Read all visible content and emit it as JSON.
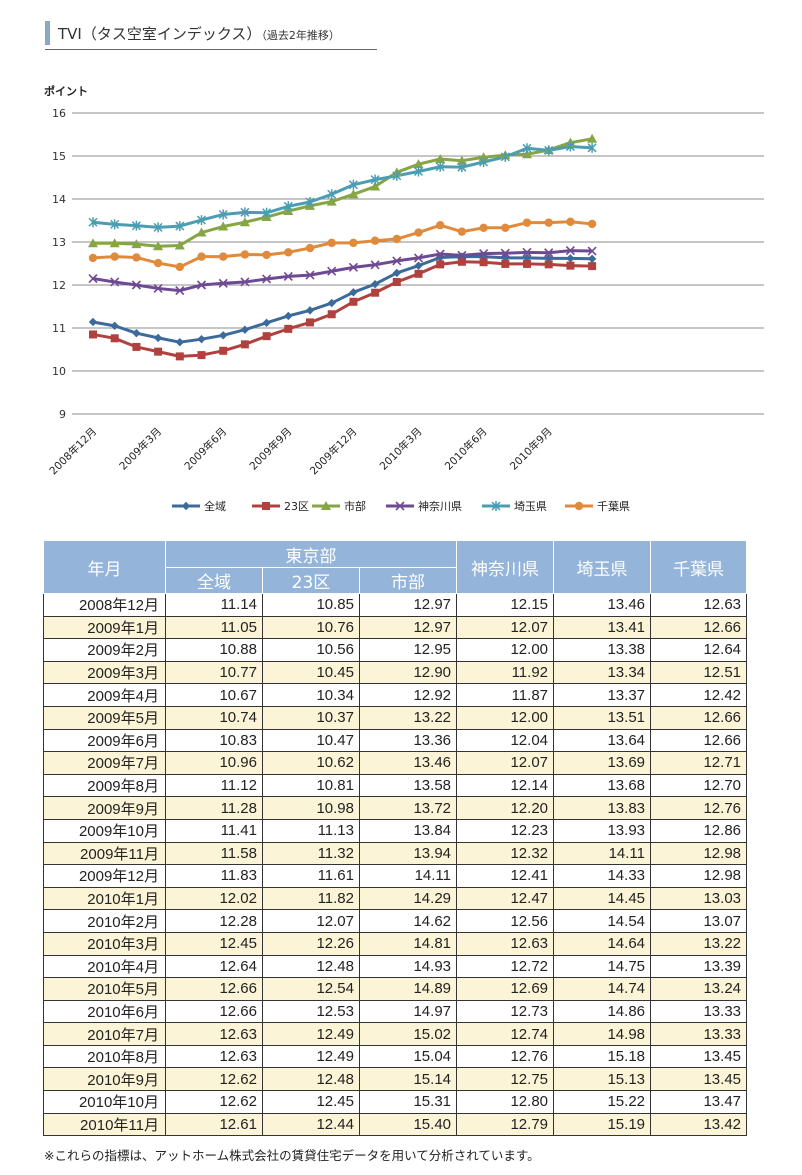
{
  "header": {
    "title": "TVI（タス空室インデックス）",
    "subtitle": "（過去2年推移）"
  },
  "chart_data": {
    "type": "line",
    "ylabel": "ポイント",
    "ylim": [
      9,
      16
    ],
    "yticks": [
      9,
      10,
      11,
      12,
      13,
      14,
      15,
      16
    ],
    "grid": true,
    "legend_position": "bottom",
    "xtick_labels": [
      "2008年12月",
      "2009年3月",
      "2009年6月",
      "2009年9月",
      "2009年12月",
      "2010年3月",
      "2010年6月",
      "2010年9月"
    ],
    "xtick_indices": [
      0,
      3,
      6,
      9,
      12,
      15,
      18,
      21
    ],
    "x": [
      "2008年12月",
      "2009年1月",
      "2009年2月",
      "2009年3月",
      "2009年4月",
      "2009年5月",
      "2009年6月",
      "2009年7月",
      "2009年8月",
      "2009年9月",
      "2009年10月",
      "2009年11月",
      "2009年12月",
      "2010年1月",
      "2010年2月",
      "2010年3月",
      "2010年4月",
      "2010年5月",
      "2010年6月",
      "2010年7月",
      "2010年8月",
      "2010年9月",
      "2010年10月",
      "2010年11月"
    ],
    "series": [
      {
        "name": "全域",
        "color": "#3c6a9a",
        "marker": "diamond",
        "values": [
          11.14,
          11.05,
          10.88,
          10.77,
          10.67,
          10.74,
          10.83,
          10.96,
          11.12,
          11.28,
          11.41,
          11.58,
          11.83,
          12.02,
          12.28,
          12.45,
          12.64,
          12.66,
          12.66,
          12.63,
          12.63,
          12.62,
          12.62,
          12.61
        ]
      },
      {
        "name": "23区",
        "color": "#b1413e",
        "marker": "square",
        "values": [
          10.85,
          10.76,
          10.56,
          10.45,
          10.34,
          10.37,
          10.47,
          10.62,
          10.81,
          10.98,
          11.13,
          11.32,
          11.61,
          11.82,
          12.07,
          12.26,
          12.48,
          12.54,
          12.53,
          12.49,
          12.49,
          12.48,
          12.45,
          12.44
        ]
      },
      {
        "name": "市部",
        "color": "#86a544",
        "marker": "triangle",
        "values": [
          12.97,
          12.97,
          12.95,
          12.9,
          12.92,
          13.22,
          13.36,
          13.46,
          13.58,
          13.72,
          13.84,
          13.94,
          14.11,
          14.29,
          14.62,
          14.81,
          14.93,
          14.89,
          14.97,
          15.02,
          15.04,
          15.14,
          15.31,
          15.4
        ]
      },
      {
        "name": "神奈川県",
        "color": "#6e4a94",
        "marker": "x",
        "values": [
          12.15,
          12.07,
          12.0,
          11.92,
          11.87,
          12.0,
          12.04,
          12.07,
          12.14,
          12.2,
          12.23,
          12.32,
          12.41,
          12.47,
          12.56,
          12.63,
          12.72,
          12.69,
          12.73,
          12.74,
          12.76,
          12.75,
          12.8,
          12.79
        ]
      },
      {
        "name": "埼玉県",
        "color": "#4a9db2",
        "marker": "asterisk",
        "values": [
          13.46,
          13.41,
          13.38,
          13.34,
          13.37,
          13.51,
          13.64,
          13.69,
          13.68,
          13.83,
          13.93,
          14.11,
          14.33,
          14.45,
          14.54,
          14.64,
          14.75,
          14.74,
          14.86,
          14.98,
          15.18,
          15.13,
          15.22,
          15.19
        ]
      },
      {
        "name": "千葉県",
        "color": "#e08a3c",
        "marker": "circle",
        "values": [
          12.63,
          12.66,
          12.64,
          12.51,
          12.42,
          12.66,
          12.66,
          12.71,
          12.7,
          12.76,
          12.86,
          12.98,
          12.98,
          13.03,
          13.07,
          13.22,
          13.39,
          13.24,
          13.33,
          13.33,
          13.45,
          13.45,
          13.47,
          13.42
        ]
      }
    ]
  },
  "table": {
    "col_yearmonth": "年月",
    "group_tokyo": "東京部",
    "col_zeniki": "全域",
    "col_23ku": "23区",
    "col_shibu": "市部",
    "col_kanagawa": "神奈川県",
    "col_saitama": "埼玉県",
    "col_chiba": "千葉県",
    "rows": [
      [
        "2008年12月",
        "11.14",
        "10.85",
        "12.97",
        "12.15",
        "13.46",
        "12.63"
      ],
      [
        "2009年1月",
        "11.05",
        "10.76",
        "12.97",
        "12.07",
        "13.41",
        "12.66"
      ],
      [
        "2009年2月",
        "10.88",
        "10.56",
        "12.95",
        "12.00",
        "13.38",
        "12.64"
      ],
      [
        "2009年3月",
        "10.77",
        "10.45",
        "12.90",
        "11.92",
        "13.34",
        "12.51"
      ],
      [
        "2009年4月",
        "10.67",
        "10.34",
        "12.92",
        "11.87",
        "13.37",
        "12.42"
      ],
      [
        "2009年5月",
        "10.74",
        "10.37",
        "13.22",
        "12.00",
        "13.51",
        "12.66"
      ],
      [
        "2009年6月",
        "10.83",
        "10.47",
        "13.36",
        "12.04",
        "13.64",
        "12.66"
      ],
      [
        "2009年7月",
        "10.96",
        "10.62",
        "13.46",
        "12.07",
        "13.69",
        "12.71"
      ],
      [
        "2009年8月",
        "11.12",
        "10.81",
        "13.58",
        "12.14",
        "13.68",
        "12.70"
      ],
      [
        "2009年9月",
        "11.28",
        "10.98",
        "13.72",
        "12.20",
        "13.83",
        "12.76"
      ],
      [
        "2009年10月",
        "11.41",
        "11.13",
        "13.84",
        "12.23",
        "13.93",
        "12.86"
      ],
      [
        "2009年11月",
        "11.58",
        "11.32",
        "13.94",
        "12.32",
        "14.11",
        "12.98"
      ],
      [
        "2009年12月",
        "11.83",
        "11.61",
        "14.11",
        "12.41",
        "14.33",
        "12.98"
      ],
      [
        "2010年1月",
        "12.02",
        "11.82",
        "14.29",
        "12.47",
        "14.45",
        "13.03"
      ],
      [
        "2010年2月",
        "12.28",
        "12.07",
        "14.62",
        "12.56",
        "14.54",
        "13.07"
      ],
      [
        "2010年3月",
        "12.45",
        "12.26",
        "14.81",
        "12.63",
        "14.64",
        "13.22"
      ],
      [
        "2010年4月",
        "12.64",
        "12.48",
        "14.93",
        "12.72",
        "14.75",
        "13.39"
      ],
      [
        "2010年5月",
        "12.66",
        "12.54",
        "14.89",
        "12.69",
        "14.74",
        "13.24"
      ],
      [
        "2010年6月",
        "12.66",
        "12.53",
        "14.97",
        "12.73",
        "14.86",
        "13.33"
      ],
      [
        "2010年7月",
        "12.63",
        "12.49",
        "15.02",
        "12.74",
        "14.98",
        "13.33"
      ],
      [
        "2010年8月",
        "12.63",
        "12.49",
        "15.04",
        "12.76",
        "15.18",
        "13.45"
      ],
      [
        "2010年9月",
        "12.62",
        "12.48",
        "15.14",
        "12.75",
        "15.13",
        "13.45"
      ],
      [
        "2010年10月",
        "12.62",
        "12.45",
        "15.31",
        "12.80",
        "15.22",
        "13.47"
      ],
      [
        "2010年11月",
        "12.61",
        "12.44",
        "15.40",
        "12.79",
        "15.19",
        "13.42"
      ]
    ]
  },
  "note": "※これらの指標は、アットホーム株式会社の賃貸住宅データを用いて分析されています。"
}
